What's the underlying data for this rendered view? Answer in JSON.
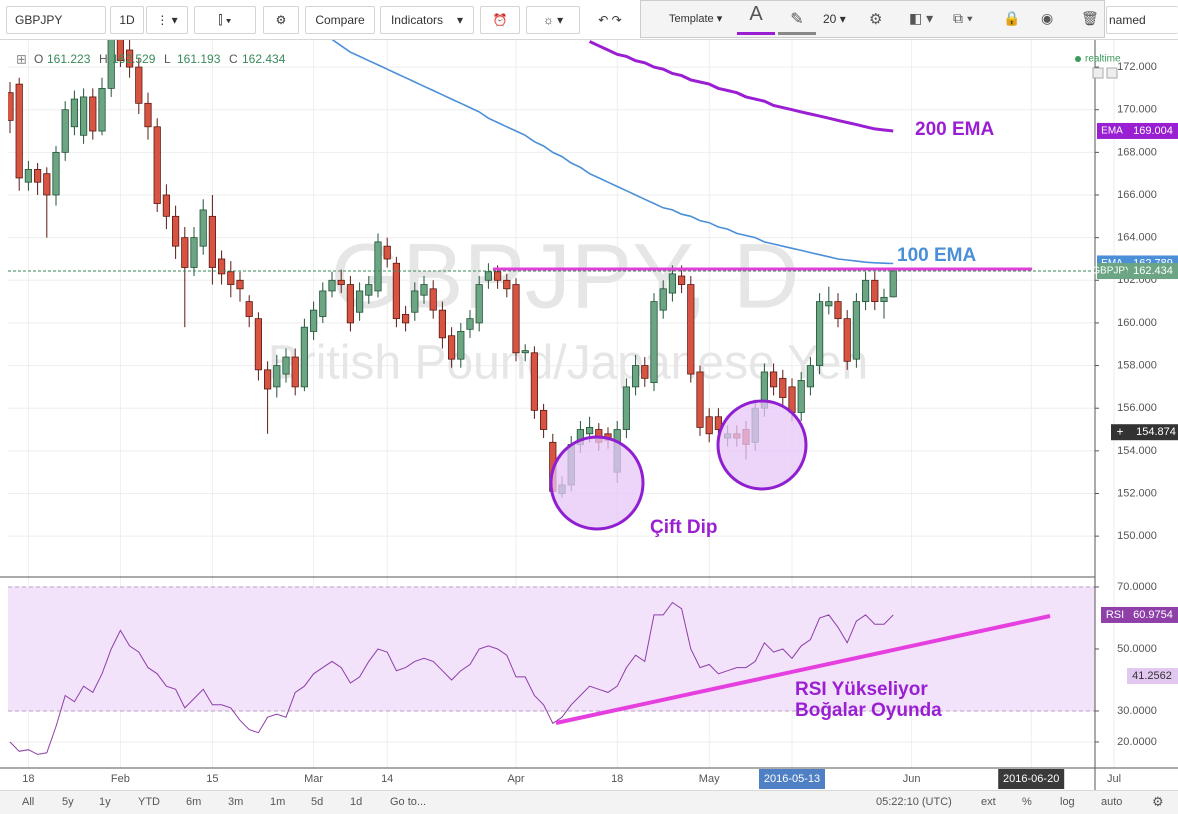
{
  "toolbar": {
    "symbol": "GBPJPY",
    "interval": "1D",
    "compare": "Compare",
    "indicators": "Indicators",
    "template": "Template",
    "text_tool": "A",
    "line_width": "20",
    "layout_name": "named"
  },
  "chart_data": [
    {
      "type": "candlestick",
      "watermark": "GBPJPY, D",
      "watermark_subtitle": "British Pound/Japanese Yen",
      "realtime": "realtime",
      "ohlc_keys": [
        "O",
        "H",
        "L",
        "C"
      ],
      "categories": [
        null,
        null,
        "18",
        null,
        null,
        null,
        null,
        null,
        null,
        null,
        null,
        null,
        "Feb",
        null,
        null,
        null,
        null,
        null,
        null,
        null,
        null,
        null,
        "15",
        null,
        null,
        null,
        null,
        null,
        null,
        null,
        null,
        null,
        null,
        "Mar",
        null,
        null,
        null,
        null,
        null,
        null,
        null,
        "14",
        null,
        null,
        null,
        null,
        null,
        null,
        null,
        null,
        null,
        null,
        null,
        null,
        null,
        "Apr",
        null,
        null,
        null,
        null,
        null,
        null,
        null,
        null,
        null,
        null,
        "18",
        null,
        null,
        null,
        null,
        null,
        null,
        null,
        null,
        null,
        "May",
        null,
        null,
        null,
        null,
        null,
        null,
        null,
        null,
        "2016-05-13",
        null,
        null,
        null,
        null,
        null,
        null,
        null,
        null,
        null,
        null,
        null,
        null,
        "Jun",
        null,
        null,
        null,
        null,
        null,
        null,
        null,
        null,
        null,
        null,
        null,
        null,
        "2016-06-20",
        null,
        null,
        null,
        null,
        null,
        null,
        null,
        null,
        "Jul"
      ],
      "open": [
        170.8,
        171.2,
        166.6,
        167.2,
        167.0,
        166.0,
        168.0,
        169.2,
        168.8,
        170.6,
        169.0,
        171.0,
        173.5,
        172.8,
        172.0,
        170.3,
        169.2,
        166.0,
        165.0,
        164.0,
        162.6,
        163.6,
        165.0,
        163.0,
        162.4,
        162.0,
        161.0,
        160.2,
        157.8,
        157.0,
        157.6,
        158.4,
        157.0,
        159.6,
        160.3,
        161.5,
        162.0,
        161.8,
        160.5,
        161.3,
        161.5,
        163.6,
        162.8,
        160.4,
        160.5,
        161.3,
        161.6,
        160.6,
        159.4,
        158.3,
        159.7,
        160.0,
        162.0,
        162.4,
        162.0,
        161.8,
        158.6,
        158.6,
        155.9,
        154.4,
        152.0,
        152.4,
        154.3,
        154.8,
        155.0,
        154.8,
        153.0,
        155.0,
        157.0,
        158.0,
        157.2,
        160.6,
        161.4,
        162.2,
        161.8,
        157.7,
        155.6,
        155.6,
        154.6,
        154.8,
        155.0,
        154.4,
        156.0,
        157.7,
        157.4,
        157.0,
        155.8,
        157.0,
        158.0,
        160.8,
        161.0,
        160.2,
        158.3,
        161.0,
        162.0,
        161.0,
        161.223,
        null,
        null,
        null,
        null,
        null,
        null,
        null,
        null,
        null,
        null,
        null,
        null,
        null,
        null,
        null,
        null,
        null,
        null,
        null,
        null,
        null,
        null,
        null,
        null
      ],
      "high": [
        171.3,
        171.5,
        167.6,
        167.5,
        167.3,
        168.3,
        170.4,
        170.9,
        171.0,
        171.0,
        171.5,
        174.0,
        174.2,
        173.3,
        172.4,
        170.8,
        169.6,
        166.5,
        165.5,
        164.5,
        164.5,
        165.8,
        166.0,
        163.4,
        162.9,
        162.4,
        161.3,
        160.5,
        158.2,
        158.5,
        158.8,
        158.8,
        160.2,
        161.0,
        161.9,
        162.4,
        162.5,
        162.2,
        161.9,
        162.2,
        164.2,
        164.0,
        163.1,
        160.8,
        161.9,
        162.2,
        162.0,
        161.0,
        159.8,
        160.0,
        160.6,
        162.2,
        162.8,
        162.7,
        162.3,
        162.1,
        159.0,
        158.9,
        156.2,
        154.8,
        152.8,
        154.7,
        155.4,
        155.6,
        155.3,
        155.1,
        155.4,
        157.4,
        158.5,
        158.4,
        161.4,
        162.0,
        162.7,
        162.7,
        162.2,
        158.0,
        156.0,
        156.0,
        155.2,
        155.2,
        155.4,
        156.4,
        158.1,
        158.1,
        157.8,
        157.4,
        157.7,
        158.4,
        161.4,
        161.7,
        161.4,
        160.6,
        161.4,
        162.4,
        162.4,
        161.6,
        162.529,
        null,
        null,
        null,
        null,
        null,
        null,
        null,
        null,
        null,
        null,
        null,
        null,
        null,
        null,
        null,
        null,
        null,
        null,
        null,
        null,
        null,
        null,
        null,
        null
      ],
      "low": [
        168.9,
        166.2,
        166.2,
        166.0,
        164.0,
        165.5,
        167.6,
        168.8,
        168.4,
        168.6,
        168.8,
        170.6,
        172.0,
        171.5,
        169.8,
        168.6,
        165.2,
        164.4,
        163.0,
        159.8,
        162.2,
        163.2,
        161.8,
        161.8,
        161.2,
        161.0,
        159.8,
        157.3,
        154.8,
        156.5,
        157.2,
        156.6,
        156.8,
        159.2,
        160.0,
        161.2,
        161.4,
        159.6,
        160.1,
        160.9,
        161.2,
        162.6,
        159.8,
        159.6,
        160.1,
        160.9,
        160.2,
        158.8,
        157.9,
        157.9,
        159.3,
        159.6,
        161.6,
        161.6,
        161.2,
        158.2,
        158.2,
        155.5,
        154.6,
        151.8,
        151.8,
        152.1,
        153.9,
        154.4,
        154.0,
        154.1,
        152.5,
        154.6,
        156.6,
        157.0,
        156.8,
        160.2,
        161.0,
        161.4,
        157.2,
        154.7,
        154.4,
        154.6,
        154.2,
        154.2,
        153.6,
        154.0,
        155.6,
        156.6,
        156.1,
        155.4,
        155.4,
        156.6,
        157.6,
        160.4,
        159.8,
        157.8,
        157.9,
        160.6,
        160.6,
        160.2,
        161.193,
        null,
        null,
        null,
        null,
        null,
        null,
        null,
        null,
        null,
        null,
        null,
        null,
        null,
        null,
        null,
        null,
        null,
        null,
        null,
        null,
        null,
        null,
        null,
        null
      ],
      "close": [
        169.5,
        166.8,
        167.2,
        166.6,
        166.0,
        168.0,
        170.0,
        170.5,
        170.6,
        169.0,
        171.0,
        173.5,
        172.3,
        172.0,
        170.3,
        169.2,
        165.6,
        165.0,
        163.6,
        162.6,
        164.0,
        165.3,
        162.6,
        162.3,
        161.8,
        161.6,
        160.3,
        157.8,
        156.9,
        158.0,
        158.4,
        157.0,
        159.8,
        160.6,
        161.5,
        162.0,
        161.8,
        160.0,
        161.5,
        161.8,
        163.8,
        163.0,
        160.2,
        160.0,
        161.5,
        161.8,
        160.6,
        159.3,
        158.3,
        159.6,
        160.2,
        161.8,
        162.4,
        162.0,
        161.6,
        158.6,
        158.7,
        155.9,
        155.0,
        152.1,
        152.4,
        154.3,
        155.0,
        155.1,
        154.4,
        154.5,
        155.0,
        157.0,
        158.0,
        157.4,
        161.0,
        161.6,
        162.3,
        161.8,
        157.6,
        155.1,
        154.8,
        155.0,
        154.8,
        154.6,
        154.3,
        156.0,
        157.7,
        157.0,
        156.5,
        155.8,
        157.3,
        158.0,
        161.0,
        161.0,
        160.2,
        158.2,
        161.0,
        162.0,
        161.0,
        161.2,
        162.434,
        null,
        null,
        null,
        null,
        null,
        null,
        null,
        null,
        null,
        null,
        null,
        null,
        null,
        null,
        null,
        null,
        null,
        null,
        null,
        null,
        null,
        null,
        null,
        null
      ],
      "up_color": "#6ba583",
      "up_border": "#225437",
      "down_color": "#d75442",
      "down_border": "#5b1a13",
      "price_tag": {
        "name": "GBPJPY",
        "color": "#6ba583"
      },
      "crosshair_price": 154.874,
      "lines": [
        {
          "name": "EMA",
          "annotation": "200 EMA",
          "color": "#9a1fd3",
          "values": [
            null,
            null,
            null,
            null,
            null,
            null,
            null,
            null,
            null,
            null,
            null,
            null,
            null,
            null,
            null,
            null,
            null,
            null,
            null,
            null,
            null,
            null,
            null,
            null,
            null,
            null,
            null,
            null,
            null,
            null,
            null,
            null,
            null,
            null,
            null,
            null,
            null,
            null,
            null,
            null,
            null,
            null,
            null,
            null,
            null,
            null,
            null,
            null,
            null,
            null,
            null,
            null,
            null,
            null,
            null,
            null,
            null,
            null,
            null,
            null,
            null,
            null,
            null,
            173.2,
            173.0,
            172.8,
            172.6,
            172.5,
            172.3,
            172.2,
            172.0,
            171.9,
            171.7,
            171.6,
            171.4,
            171.3,
            171.2,
            171.0,
            170.9,
            170.8,
            170.6,
            170.5,
            170.4,
            170.2,
            170.1,
            170.0,
            169.9,
            169.8,
            169.7,
            169.6,
            169.5,
            169.4,
            169.3,
            169.2,
            169.1,
            169.05,
            169.004,
            null,
            null,
            null,
            null,
            null,
            null,
            null,
            null,
            null,
            null,
            null,
            null,
            null,
            null,
            null,
            null,
            null,
            null,
            null,
            null,
            null,
            null,
            null,
            null
          ]
        },
        {
          "name": "EMA",
          "annotation": "100 EMA",
          "color": "#4a8fd8",
          "values": [
            null,
            null,
            null,
            null,
            null,
            null,
            null,
            null,
            null,
            null,
            null,
            null,
            null,
            null,
            null,
            null,
            null,
            null,
            null,
            null,
            null,
            null,
            null,
            null,
            null,
            null,
            null,
            null,
            null,
            null,
            null,
            null,
            null,
            null,
            null,
            173.3,
            173.0,
            172.7,
            172.5,
            172.3,
            172.1,
            171.9,
            171.7,
            171.5,
            171.3,
            171.1,
            170.9,
            170.7,
            170.5,
            170.3,
            170.1,
            169.9,
            169.6,
            169.4,
            169.2,
            169.0,
            168.8,
            168.5,
            168.3,
            168.0,
            167.8,
            167.5,
            167.3,
            167.0,
            166.8,
            166.6,
            166.4,
            166.2,
            166.0,
            165.8,
            165.6,
            165.4,
            165.3,
            165.1,
            165.0,
            164.8,
            164.7,
            164.5,
            164.4,
            164.2,
            164.1,
            164.0,
            163.8,
            163.7,
            163.6,
            163.5,
            163.4,
            163.3,
            163.2,
            163.1,
            163.0,
            162.95,
            162.9,
            162.85,
            162.82,
            162.8,
            162.789,
            null,
            null,
            null,
            null,
            null,
            null,
            null,
            null,
            null,
            null,
            null,
            null,
            null,
            null,
            null,
            null,
            null,
            null,
            null,
            null,
            null,
            null,
            null,
            null
          ]
        }
      ],
      "pattern_label": "Çift Dip",
      "ylim": [
        148.13,
        173.27
      ],
      "yticks": [
        {
          "value": 150,
          "label": "150.000"
        },
        {
          "value": 152,
          "label": "152.000"
        },
        {
          "value": 154,
          "label": "154.000"
        },
        {
          "value": 156,
          "label": "156.000"
        },
        {
          "value": 158,
          "label": "158.000"
        },
        {
          "value": 160,
          "label": "160.000"
        },
        {
          "value": 162,
          "label": "162.000"
        },
        {
          "value": 164,
          "label": "164.000"
        },
        {
          "value": 166,
          "label": "166.000"
        },
        {
          "value": 168,
          "label": "168.000"
        },
        {
          "value": 170,
          "label": "170.000"
        },
        {
          "value": 172,
          "label": "172.000"
        }
      ],
      "grid": true
    },
    {
      "type": "line",
      "name": "RSI",
      "color": "#8e3fa8",
      "values": [
        20,
        17,
        17.5,
        16,
        16.5,
        25,
        35,
        33,
        38,
        36,
        42,
        50,
        56,
        51,
        49,
        44,
        42,
        38,
        37,
        31,
        34,
        37,
        32,
        32,
        31,
        27,
        24,
        23,
        28,
        29,
        28,
        36,
        38,
        42,
        44,
        46,
        44,
        39,
        41,
        46,
        50,
        49,
        43,
        44,
        46,
        47,
        46,
        43,
        40,
        43,
        45,
        50,
        51,
        50,
        48,
        41,
        41,
        35,
        32,
        26,
        28,
        32,
        35,
        38,
        37,
        36,
        38,
        44,
        48,
        46,
        61,
        61,
        65,
        63,
        50,
        44,
        45,
        42,
        43,
        44,
        44,
        46,
        52,
        49,
        50,
        47,
        51,
        53,
        60,
        61,
        57,
        52,
        59,
        61,
        58,
        58,
        60.9754,
        null,
        null,
        null,
        null,
        null,
        null,
        null,
        null,
        null,
        null,
        null,
        null,
        null,
        null,
        null,
        null,
        null,
        null,
        null,
        null,
        null,
        null,
        null,
        null
      ],
      "band": [
        30,
        70
      ],
      "band_color": "#f2e2fa",
      "secondary_value": 41.2562,
      "annotation": [
        "RSI Yükseliyor",
        "Boğalar Oyunda"
      ],
      "ylim": [
        11.6,
        72.9
      ],
      "yticks": [
        {
          "value": 20,
          "label": "20.0000"
        },
        {
          "value": 30,
          "label": "30.0000"
        },
        {
          "value": 50,
          "label": "50.0000"
        },
        {
          "value": 70,
          "label": "70.0000"
        }
      ],
      "grid": true
    }
  ],
  "bottom_bar": {
    "ranges": [
      "All",
      "5y",
      "1y",
      "YTD",
      "6m",
      "3m",
      "1m",
      "5d",
      "1d"
    ],
    "goto": "Go to...",
    "time": "05:22:10 (UTC)",
    "options": [
      "ext",
      "%",
      "log",
      "auto"
    ]
  }
}
